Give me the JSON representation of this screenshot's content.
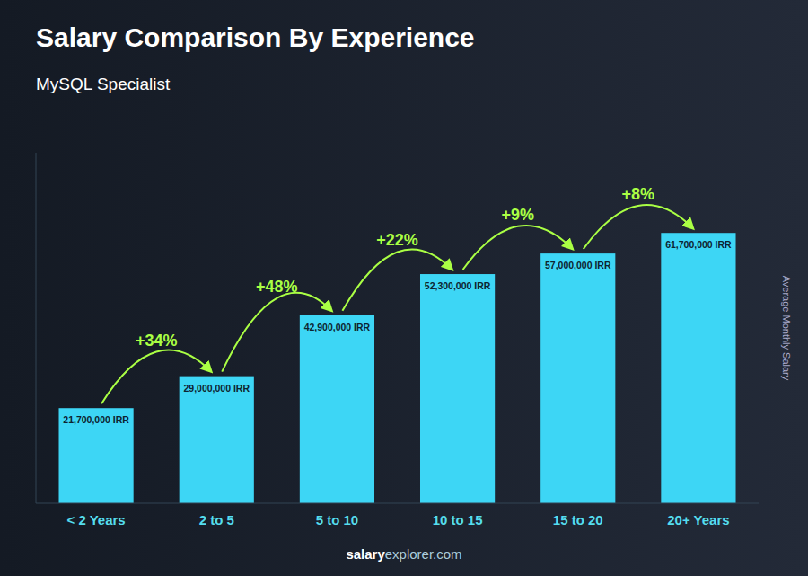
{
  "chart_data": {
    "type": "bar",
    "title": "Salary Comparison By Experience",
    "subtitle": "MySQL Specialist",
    "categories": [
      "< 2 Years",
      "2 to 5",
      "5 to 10",
      "10 to 15",
      "15 to 20",
      "20+ Years"
    ],
    "values": [
      21700000,
      29000000,
      42900000,
      52300000,
      57000000,
      61700000
    ],
    "value_labels": [
      "21,700,000 IRR",
      "29,000,000 IRR",
      "42,900,000 IRR",
      "52,300,000 IRR",
      "57,000,000 IRR",
      "61,700,000 IRR"
    ],
    "data_labels": true,
    "annotations": [
      "+34%",
      "+48%",
      "+22%",
      "+9%",
      "+8%"
    ],
    "ylabel": "Average Monthly Salary",
    "footer": [
      "salary",
      "explorer.com"
    ],
    "color": "#3dd6f5",
    "ylim": [
      0,
      80000000
    ],
    "tick_labels": "x",
    "grid": false
  }
}
